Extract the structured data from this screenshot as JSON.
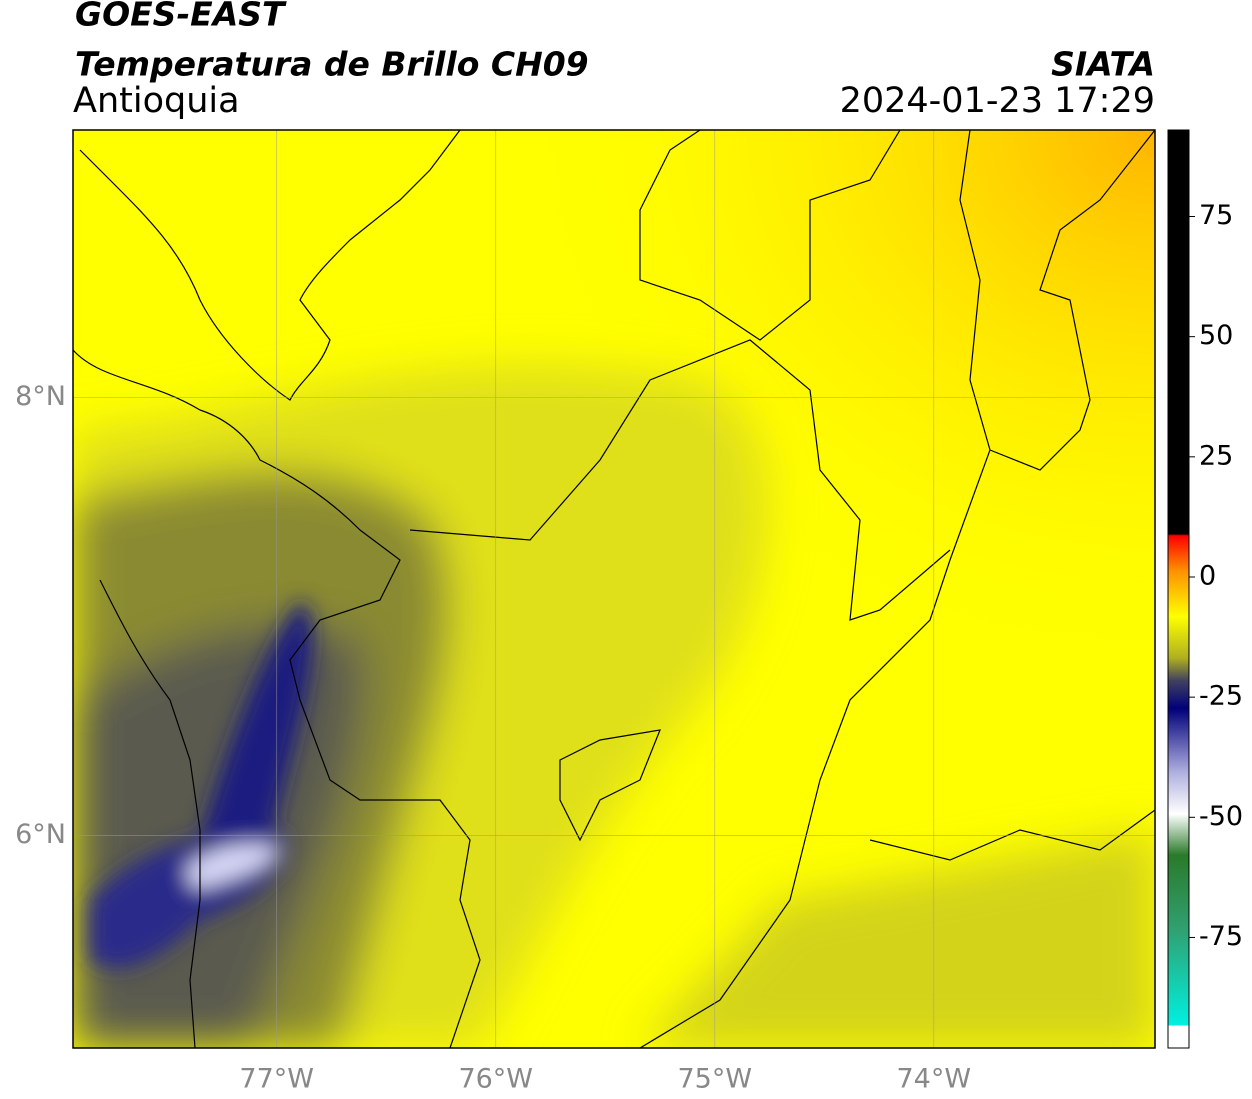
{
  "header": {
    "title": "GOES-EAST",
    "subtitle": "Temperatura de Brillo CH09",
    "source": "SIATA",
    "region": "Antioquia",
    "datetime": "2024-01-23 17:29"
  },
  "map": {
    "xlim": [
      -77.93,
      -72.99
    ],
    "ylim": [
      5.03,
      9.22
    ],
    "xticks": [
      {
        "value": -77,
        "label": "77°W"
      },
      {
        "value": -76,
        "label": "76°W"
      },
      {
        "value": -75,
        "label": "75°W"
      },
      {
        "value": -74,
        "label": "74°W"
      }
    ],
    "yticks": [
      {
        "value": 8,
        "label": "8°N"
      },
      {
        "value": 6,
        "label": "6°N"
      }
    ],
    "grid": true
  },
  "colorbar": {
    "lim": [
      -98,
      93
    ],
    "ticks": [
      75,
      50,
      25,
      0,
      -25,
      -50,
      -75
    ]
  }
}
